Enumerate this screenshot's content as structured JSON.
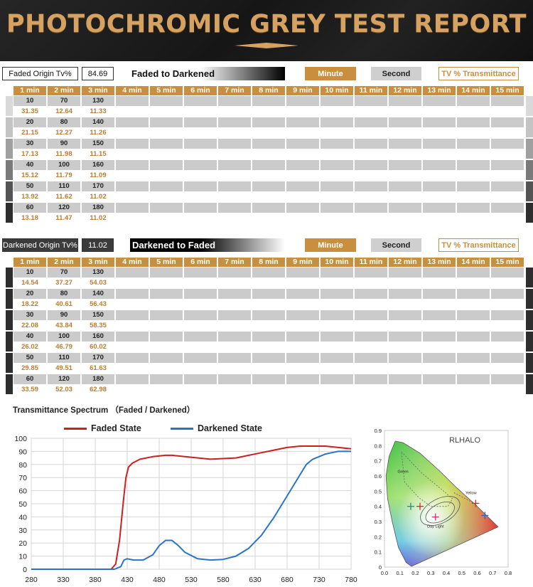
{
  "header": {
    "title": "PHOTOCHROMIC GREY TEST REPORT"
  },
  "colors": {
    "accent": "#c98f3e",
    "faded_line": "#cc1f1f",
    "darkened_line": "#2a74c8"
  },
  "faded_panel": {
    "origin_label": "Faded Origin Tv%",
    "origin_value": "84.69",
    "direction_label": "Faded to Darkened",
    "minute_label": "Minute",
    "second_label": "Second",
    "tv_label": "TV % Transmittance",
    "columns": [
      "1 min",
      "2 min",
      "3 min",
      "4 min",
      "5 min",
      "6 min",
      "7 min",
      "8 min",
      "9 min",
      "10 min",
      "11 min",
      "12 min",
      "13 min",
      "14 min",
      "15 min"
    ],
    "rows": [
      {
        "sec": [
          "10",
          "70",
          "130"
        ],
        "tv": [
          "31.35",
          "12.64",
          "11.33"
        ]
      },
      {
        "sec": [
          "20",
          "80",
          "140"
        ],
        "tv": [
          "21.15",
          "12.27",
          "11.26"
        ]
      },
      {
        "sec": [
          "30",
          "90",
          "150"
        ],
        "tv": [
          "17.13",
          "11.98",
          "11.15"
        ]
      },
      {
        "sec": [
          "40",
          "100",
          "160"
        ],
        "tv": [
          "15.12",
          "11.79",
          "11.09"
        ]
      },
      {
        "sec": [
          "50",
          "110",
          "170"
        ],
        "tv": [
          "13.92",
          "11.62",
          "11.02"
        ]
      },
      {
        "sec": [
          "60",
          "120",
          "180"
        ],
        "tv": [
          "13.18",
          "11.47",
          "11.02"
        ]
      }
    ]
  },
  "darkened_panel": {
    "origin_label": "Darkened Origin Tv%",
    "origin_value": "11.02",
    "direction_label": "Darkened to Faded",
    "minute_label": "Minute",
    "second_label": "Second",
    "tv_label": "TV % Transmittance",
    "columns": [
      "1 min",
      "2 min",
      "3 min",
      "4 min",
      "5 min",
      "6 min",
      "7 min",
      "8 min",
      "9 min",
      "10 min",
      "11 min",
      "12 min",
      "13 min",
      "14 min",
      "15 min"
    ],
    "rows": [
      {
        "sec": [
          "10",
          "70",
          "130"
        ],
        "tv": [
          "14.54",
          "37.27",
          "54.03"
        ]
      },
      {
        "sec": [
          "20",
          "80",
          "140"
        ],
        "tv": [
          "18.22",
          "40.61",
          "56.43"
        ]
      },
      {
        "sec": [
          "30",
          "90",
          "150"
        ],
        "tv": [
          "22.08",
          "43.84",
          "58.35"
        ]
      },
      {
        "sec": [
          "40",
          "100",
          "160"
        ],
        "tv": [
          "26.02",
          "46.79",
          "60.02"
        ]
      },
      {
        "sec": [
          "50",
          "110",
          "170"
        ],
        "tv": [
          "29.85",
          "49.51",
          "61.63"
        ]
      },
      {
        "sec": [
          "60",
          "120",
          "180"
        ],
        "tv": [
          "33.59",
          "52.03",
          "62.98"
        ]
      }
    ]
  },
  "chart_data": [
    {
      "type": "line",
      "title": "Transmittance Spectrum （Faded / Darkened）",
      "xlabel": "",
      "ylabel": "",
      "xlim": [
        280,
        780
      ],
      "ylim": [
        0,
        100
      ],
      "xticks": [
        "280",
        "330",
        "380",
        "430",
        "480",
        "530",
        "580",
        "630",
        "680",
        "730",
        "780"
      ],
      "yticks": [
        "0",
        "10",
        "20",
        "30",
        "40",
        "50",
        "60",
        "70",
        "80",
        "90",
        "100"
      ],
      "grid": true,
      "legend": "top",
      "series": [
        {
          "name": "Faded State",
          "color": "#cc1f1f",
          "x": [
            280,
            380,
            405,
            412,
            418,
            424,
            428,
            432,
            438,
            450,
            470,
            490,
            500,
            520,
            560,
            600,
            640,
            680,
            700,
            720,
            740,
            760,
            780
          ],
          "y": [
            0,
            0,
            0,
            4,
            22,
            52,
            70,
            78,
            81,
            84,
            86,
            87,
            87,
            86,
            84,
            85,
            89,
            93,
            94,
            94,
            94,
            93,
            92
          ]
        },
        {
          "name": "Darkened State",
          "color": "#2a74c8",
          "x": [
            280,
            380,
            410,
            420,
            425,
            430,
            440,
            455,
            470,
            480,
            490,
            500,
            510,
            520,
            540,
            560,
            580,
            600,
            620,
            640,
            660,
            680,
            700,
            710,
            720,
            730,
            740,
            750,
            760,
            770,
            780
          ],
          "y": [
            0,
            0,
            0,
            2,
            7,
            8,
            7,
            7,
            11,
            18,
            22,
            22,
            18,
            13,
            8,
            7,
            7.5,
            10,
            16,
            26,
            40,
            56,
            72,
            80,
            84,
            86,
            88,
            89,
            90,
            90,
            90
          ]
        }
      ]
    },
    {
      "type": "scatter",
      "title": "",
      "brand_label": "RLHALO",
      "region_labels": [
        "Green",
        "Yellow",
        "Day Light"
      ],
      "xlim": [
        0,
        0.8
      ],
      "ylim": [
        0,
        0.9
      ],
      "xticks": [
        "0.0",
        "0.1",
        "0.2",
        "0.3",
        "0.4",
        "0.5",
        "0.6",
        "0.7",
        "0.8"
      ],
      "yticks": [
        "0",
        "0.1",
        "0.2",
        "0.3",
        "0.4",
        "0.5",
        "0.6",
        "0.7",
        "0.8",
        "0.9"
      ],
      "markers": [
        {
          "x": 0.17,
          "y": 0.4,
          "color": "#2b8a6e"
        },
        {
          "x": 0.23,
          "y": 0.4,
          "color": "#d42a2a"
        },
        {
          "x": 0.33,
          "y": 0.33,
          "color": "#c7357a"
        },
        {
          "x": 0.59,
          "y": 0.42,
          "color": "#d42a2a"
        },
        {
          "x": 0.65,
          "y": 0.34,
          "color": "#3366cc"
        }
      ]
    }
  ]
}
